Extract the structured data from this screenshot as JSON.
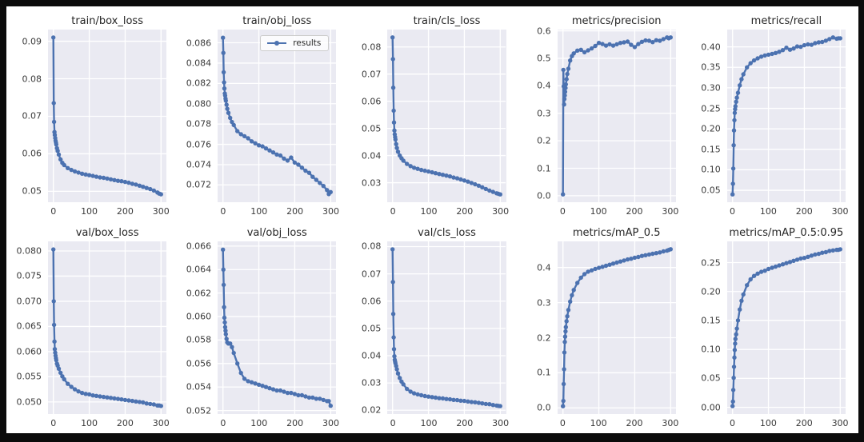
{
  "figure": {
    "frame_color": "#0b0b0b",
    "background": "#ffffff",
    "axes_background": "#eaeaf2",
    "grid_color": "#ffffff",
    "line_color": "#4c72b0",
    "legend_label": "results",
    "layout": {
      "rows": 2,
      "cols": 5,
      "grid": true,
      "legend_position": "upper right of second subplot"
    }
  },
  "chart_data": [
    {
      "type": "line",
      "title": "train/box_loss",
      "xlabel": "",
      "ylabel": "",
      "xlim": [
        -15,
        315
      ],
      "ylim": [
        0.0471,
        0.0931
      ],
      "xticks": [
        0,
        100,
        200,
        300
      ],
      "xtick_labels": [
        "0",
        "100",
        "200",
        "300"
      ],
      "yticks": [
        0.05,
        0.06,
        0.07,
        0.08,
        0.09
      ],
      "ytick_labels": [
        "0.05",
        "0.06",
        "0.07",
        "0.08",
        "0.09"
      ],
      "x": [
        0,
        1,
        2,
        3,
        4,
        5,
        6,
        7,
        8,
        10,
        12,
        15,
        20,
        25,
        30,
        40,
        50,
        60,
        70,
        80,
        90,
        100,
        110,
        120,
        130,
        140,
        150,
        160,
        170,
        180,
        190,
        200,
        210,
        220,
        230,
        240,
        250,
        260,
        270,
        280,
        290,
        295,
        300
      ],
      "y": [
        0.091,
        0.0735,
        0.0685,
        0.0658,
        0.065,
        0.0642,
        0.0635,
        0.063,
        0.0625,
        0.0615,
        0.0608,
        0.0598,
        0.0585,
        0.0576,
        0.057,
        0.0562,
        0.0557,
        0.0553,
        0.055,
        0.0547,
        0.0545,
        0.0543,
        0.0541,
        0.0539,
        0.0537,
        0.0536,
        0.0534,
        0.0532,
        0.053,
        0.0528,
        0.0527,
        0.0525,
        0.0523,
        0.052,
        0.0518,
        0.0515,
        0.0512,
        0.0509,
        0.0506,
        0.0502,
        0.0497,
        0.0494,
        0.0492
      ]
    },
    {
      "type": "line",
      "title": "train/obj_loss",
      "xlabel": "",
      "ylabel": "",
      "legend": "results",
      "xlim": [
        -15,
        315
      ],
      "ylim": [
        0.0703,
        0.0873
      ],
      "xticks": [
        0,
        100,
        200,
        300
      ],
      "xtick_labels": [
        "0",
        "100",
        "200",
        "300"
      ],
      "yticks": [
        0.072,
        0.074,
        0.076,
        0.078,
        0.08,
        0.082,
        0.084,
        0.086
      ],
      "ytick_labels": [
        "0.072",
        "0.074",
        "0.076",
        "0.078",
        "0.080",
        "0.082",
        "0.084",
        "0.086"
      ],
      "x": [
        0,
        1,
        2,
        3,
        4,
        5,
        6,
        7,
        8,
        10,
        12,
        15,
        20,
        25,
        30,
        40,
        50,
        60,
        70,
        80,
        90,
        100,
        110,
        120,
        130,
        140,
        150,
        160,
        170,
        180,
        190,
        200,
        210,
        220,
        230,
        240,
        250,
        260,
        270,
        280,
        290,
        295,
        300
      ],
      "y": [
        0.0865,
        0.085,
        0.0831,
        0.0821,
        0.0815,
        0.081,
        0.0808,
        0.0805,
        0.0803,
        0.0799,
        0.0795,
        0.0791,
        0.0786,
        0.0782,
        0.0779,
        0.0773,
        0.077,
        0.0768,
        0.0766,
        0.0763,
        0.0761,
        0.0759,
        0.0758,
        0.0756,
        0.0754,
        0.0752,
        0.075,
        0.0749,
        0.0746,
        0.0744,
        0.0747,
        0.0742,
        0.074,
        0.0737,
        0.0734,
        0.0732,
        0.0728,
        0.0725,
        0.0722,
        0.0719,
        0.0715,
        0.0711,
        0.0713
      ]
    },
    {
      "type": "line",
      "title": "train/cls_loss",
      "xlabel": "",
      "ylabel": "",
      "xlim": [
        -15,
        315
      ],
      "ylim": [
        0.0228,
        0.0864
      ],
      "xticks": [
        0,
        100,
        200,
        300
      ],
      "xtick_labels": [
        "0",
        "100",
        "200",
        "300"
      ],
      "yticks": [
        0.03,
        0.04,
        0.05,
        0.06,
        0.07,
        0.08
      ],
      "ytick_labels": [
        "0.03",
        "0.04",
        "0.05",
        "0.06",
        "0.07",
        "0.08"
      ],
      "x": [
        0,
        1,
        2,
        3,
        4,
        5,
        6,
        7,
        8,
        10,
        12,
        15,
        20,
        25,
        30,
        40,
        50,
        60,
        70,
        80,
        90,
        100,
        110,
        120,
        130,
        140,
        150,
        160,
        170,
        180,
        190,
        200,
        210,
        220,
        230,
        240,
        250,
        260,
        270,
        280,
        290,
        295,
        300
      ],
      "y": [
        0.0835,
        0.0755,
        0.065,
        0.0565,
        0.0522,
        0.0492,
        0.0478,
        0.0468,
        0.0459,
        0.0442,
        0.0428,
        0.0414,
        0.04,
        0.039,
        0.0381,
        0.0369,
        0.0361,
        0.0355,
        0.0351,
        0.0347,
        0.0344,
        0.0341,
        0.0338,
        0.0335,
        0.0332,
        0.0329,
        0.0326,
        0.0323,
        0.0319,
        0.0316,
        0.0312,
        0.0308,
        0.0304,
        0.0299,
        0.0294,
        0.0289,
        0.0283,
        0.0277,
        0.0271,
        0.0266,
        0.0261,
        0.0259,
        0.0257
      ]
    },
    {
      "type": "line",
      "title": "metrics/precision",
      "xlabel": "",
      "ylabel": "",
      "xlim": [
        -15,
        315
      ],
      "ylim": [
        -0.0236,
        0.6046
      ],
      "xticks": [
        0,
        100,
        200,
        300
      ],
      "xtick_labels": [
        "0",
        "100",
        "200",
        "300"
      ],
      "yticks": [
        0.0,
        0.1,
        0.2,
        0.3,
        0.4,
        0.5,
        0.6
      ],
      "ytick_labels": [
        "0.0",
        "0.1",
        "0.2",
        "0.3",
        "0.4",
        "0.5",
        "0.6"
      ],
      "x": [
        0,
        1,
        2,
        3,
        4,
        5,
        6,
        7,
        8,
        10,
        12,
        15,
        20,
        25,
        30,
        40,
        50,
        60,
        70,
        80,
        90,
        100,
        110,
        120,
        130,
        140,
        150,
        160,
        170,
        180,
        190,
        200,
        210,
        220,
        230,
        240,
        250,
        260,
        270,
        280,
        290,
        295,
        300
      ],
      "y": [
        0.005,
        0.458,
        0.398,
        0.332,
        0.352,
        0.365,
        0.378,
        0.392,
        0.405,
        0.424,
        0.443,
        0.462,
        0.492,
        0.508,
        0.518,
        0.528,
        0.531,
        0.522,
        0.529,
        0.536,
        0.545,
        0.556,
        0.552,
        0.546,
        0.551,
        0.546,
        0.551,
        0.556,
        0.558,
        0.561,
        0.549,
        0.541,
        0.552,
        0.56,
        0.565,
        0.564,
        0.559,
        0.566,
        0.564,
        0.57,
        0.576,
        0.573,
        0.576
      ]
    },
    {
      "type": "line",
      "title": "metrics/recall",
      "xlabel": "",
      "ylabel": "",
      "xlim": [
        -15,
        315
      ],
      "ylim": [
        0.0209,
        0.4422
      ],
      "xticks": [
        0,
        100,
        200,
        300
      ],
      "xtick_labels": [
        "0",
        "100",
        "200",
        "300"
      ],
      "yticks": [
        0.05,
        0.1,
        0.15,
        0.2,
        0.25,
        0.3,
        0.35,
        0.4
      ],
      "ytick_labels": [
        "0.05",
        "0.10",
        "0.15",
        "0.20",
        "0.25",
        "0.30",
        "0.35",
        "0.40"
      ],
      "x": [
        0,
        1,
        2,
        3,
        4,
        5,
        6,
        7,
        8,
        10,
        12,
        15,
        20,
        25,
        30,
        40,
        50,
        60,
        70,
        80,
        90,
        100,
        110,
        120,
        130,
        140,
        150,
        160,
        170,
        180,
        190,
        200,
        210,
        220,
        230,
        240,
        250,
        260,
        270,
        280,
        290,
        295,
        300
      ],
      "y": [
        0.04,
        0.066,
        0.103,
        0.16,
        0.196,
        0.221,
        0.239,
        0.248,
        0.255,
        0.266,
        0.276,
        0.288,
        0.306,
        0.321,
        0.333,
        0.35,
        0.36,
        0.367,
        0.372,
        0.376,
        0.379,
        0.381,
        0.383,
        0.385,
        0.388,
        0.392,
        0.398,
        0.393,
        0.396,
        0.401,
        0.4,
        0.404,
        0.406,
        0.405,
        0.409,
        0.411,
        0.412,
        0.415,
        0.419,
        0.423,
        0.42,
        0.421,
        0.421
      ]
    },
    {
      "type": "line",
      "title": "val/box_loss",
      "xlabel": "",
      "ylabel": "",
      "xlim": [
        -15,
        315
      ],
      "ylim": [
        0.0476,
        0.0819
      ],
      "xticks": [
        0,
        100,
        200,
        300
      ],
      "xtick_labels": [
        "0",
        "100",
        "200",
        "300"
      ],
      "yticks": [
        0.05,
        0.055,
        0.06,
        0.065,
        0.07,
        0.075,
        0.08
      ],
      "ytick_labels": [
        "0.050",
        "0.055",
        "0.060",
        "0.065",
        "0.070",
        "0.075",
        "0.080"
      ],
      "x": [
        0,
        1,
        2,
        3,
        4,
        5,
        6,
        7,
        8,
        10,
        12,
        15,
        20,
        25,
        30,
        40,
        50,
        60,
        70,
        80,
        90,
        100,
        110,
        120,
        130,
        140,
        150,
        160,
        170,
        180,
        190,
        200,
        210,
        220,
        230,
        240,
        250,
        260,
        270,
        280,
        290,
        295,
        300
      ],
      "y": [
        0.0803,
        0.07,
        0.0653,
        0.062,
        0.0605,
        0.0598,
        0.0592,
        0.0587,
        0.0583,
        0.0576,
        0.0572,
        0.0566,
        0.0558,
        0.0551,
        0.0545,
        0.0536,
        0.053,
        0.0525,
        0.0521,
        0.0518,
        0.0516,
        0.0515,
        0.0513,
        0.0512,
        0.0511,
        0.051,
        0.0509,
        0.0508,
        0.0507,
        0.0506,
        0.0505,
        0.0504,
        0.0503,
        0.0502,
        0.0501,
        0.05,
        0.0499,
        0.0497,
        0.0496,
        0.0495,
        0.0493,
        0.0493,
        0.0492
      ]
    },
    {
      "type": "line",
      "title": "val/obj_loss",
      "xlabel": "",
      "ylabel": "",
      "xlim": [
        -15,
        315
      ],
      "ylim": [
        0.0517,
        0.0664
      ],
      "xticks": [
        0,
        100,
        200,
        300
      ],
      "xtick_labels": [
        "0",
        "100",
        "200",
        "300"
      ],
      "yticks": [
        0.052,
        0.054,
        0.056,
        0.058,
        0.06,
        0.062,
        0.064,
        0.066
      ],
      "ytick_labels": [
        "0.052",
        "0.054",
        "0.056",
        "0.058",
        "0.060",
        "0.062",
        "0.064",
        "0.066"
      ],
      "x": [
        0,
        1,
        2,
        3,
        4,
        5,
        6,
        7,
        8,
        10,
        12,
        15,
        20,
        25,
        30,
        40,
        50,
        60,
        70,
        80,
        90,
        100,
        110,
        120,
        130,
        140,
        150,
        160,
        170,
        180,
        190,
        200,
        210,
        220,
        230,
        240,
        250,
        260,
        270,
        280,
        290,
        295,
        300
      ],
      "y": [
        0.0657,
        0.064,
        0.0627,
        0.0608,
        0.0599,
        0.0595,
        0.0591,
        0.0588,
        0.0585,
        0.0581,
        0.0578,
        0.0577,
        0.0577,
        0.0574,
        0.0569,
        0.056,
        0.0552,
        0.0547,
        0.0545,
        0.0544,
        0.0543,
        0.0542,
        0.0541,
        0.054,
        0.0539,
        0.0538,
        0.0537,
        0.0537,
        0.0536,
        0.0535,
        0.0535,
        0.0534,
        0.0533,
        0.0533,
        0.0532,
        0.0531,
        0.0531,
        0.053,
        0.053,
        0.0529,
        0.0528,
        0.0528,
        0.0524
      ]
    },
    {
      "type": "line",
      "title": "val/cls_loss",
      "xlabel": "",
      "ylabel": "",
      "xlim": [
        -15,
        315
      ],
      "ylim": [
        0.0186,
        0.0819
      ],
      "xticks": [
        0,
        100,
        200,
        300
      ],
      "xtick_labels": [
        "0",
        "100",
        "200",
        "300"
      ],
      "yticks": [
        0.02,
        0.03,
        0.04,
        0.05,
        0.06,
        0.07,
        0.08
      ],
      "ytick_labels": [
        "0.02",
        "0.03",
        "0.04",
        "0.05",
        "0.06",
        "0.07",
        "0.08"
      ],
      "x": [
        0,
        1,
        2,
        3,
        4,
        5,
        6,
        7,
        8,
        10,
        12,
        15,
        20,
        25,
        30,
        40,
        50,
        60,
        70,
        80,
        90,
        100,
        110,
        120,
        130,
        140,
        150,
        160,
        170,
        180,
        190,
        200,
        210,
        220,
        230,
        240,
        250,
        260,
        270,
        280,
        290,
        295,
        300
      ],
      "y": [
        0.079,
        0.067,
        0.0553,
        0.0467,
        0.0424,
        0.0398,
        0.0385,
        0.0378,
        0.0372,
        0.0362,
        0.035,
        0.0335,
        0.0318,
        0.0305,
        0.0295,
        0.0278,
        0.0268,
        0.0262,
        0.0258,
        0.0255,
        0.0252,
        0.025,
        0.0248,
        0.0246,
        0.0244,
        0.0243,
        0.0241,
        0.024,
        0.0238,
        0.0237,
        0.0235,
        0.0234,
        0.0232,
        0.023,
        0.0229,
        0.0227,
        0.0225,
        0.0223,
        0.0222,
        0.0219,
        0.0217,
        0.0216,
        0.0215
      ]
    },
    {
      "type": "line",
      "title": "metrics/mAP_0.5",
      "xlabel": "",
      "ylabel": "",
      "xlim": [
        -15,
        315
      ],
      "ylim": [
        -0.0174,
        0.4744
      ],
      "xticks": [
        0,
        100,
        200,
        300
      ],
      "xtick_labels": [
        "0",
        "100",
        "200",
        "300"
      ],
      "yticks": [
        0.0,
        0.1,
        0.2,
        0.3,
        0.4
      ],
      "ytick_labels": [
        "0.0",
        "0.1",
        "0.2",
        "0.3",
        "0.4"
      ],
      "x": [
        0,
        1,
        2,
        3,
        4,
        5,
        6,
        7,
        8,
        10,
        12,
        15,
        20,
        25,
        30,
        40,
        50,
        60,
        70,
        80,
        90,
        100,
        110,
        120,
        130,
        140,
        150,
        160,
        170,
        180,
        190,
        200,
        210,
        220,
        230,
        240,
        250,
        260,
        270,
        280,
        290,
        295,
        300
      ],
      "y": [
        0.005,
        0.02,
        0.068,
        0.11,
        0.158,
        0.188,
        0.203,
        0.218,
        0.23,
        0.247,
        0.261,
        0.279,
        0.303,
        0.321,
        0.336,
        0.356,
        0.371,
        0.381,
        0.388,
        0.392,
        0.396,
        0.399,
        0.402,
        0.405,
        0.408,
        0.411,
        0.414,
        0.417,
        0.42,
        0.423,
        0.425,
        0.428,
        0.43,
        0.433,
        0.435,
        0.437,
        0.439,
        0.441,
        0.443,
        0.446,
        0.448,
        0.45,
        0.452
      ]
    },
    {
      "type": "line",
      "title": "metrics/mAP_0.5:0.95",
      "xlabel": "",
      "ylabel": "",
      "xlim": [
        -15,
        315
      ],
      "ylim": [
        -0.0116,
        0.2866
      ],
      "xticks": [
        0,
        100,
        200,
        300
      ],
      "xtick_labels": [
        "0",
        "100",
        "200",
        "300"
      ],
      "yticks": [
        0.0,
        0.05,
        0.1,
        0.15,
        0.2,
        0.25
      ],
      "ytick_labels": [
        "0.00",
        "0.05",
        "0.10",
        "0.15",
        "0.20",
        "0.25"
      ],
      "x": [
        0,
        1,
        2,
        3,
        4,
        5,
        6,
        7,
        8,
        10,
        12,
        15,
        20,
        25,
        30,
        40,
        50,
        60,
        70,
        80,
        90,
        100,
        110,
        120,
        130,
        140,
        150,
        160,
        170,
        180,
        190,
        200,
        210,
        220,
        230,
        240,
        250,
        260,
        270,
        280,
        290,
        295,
        300
      ],
      "y": [
        0.002,
        0.01,
        0.03,
        0.051,
        0.07,
        0.086,
        0.099,
        0.11,
        0.118,
        0.126,
        0.136,
        0.15,
        0.169,
        0.184,
        0.195,
        0.211,
        0.221,
        0.227,
        0.231,
        0.234,
        0.236,
        0.239,
        0.241,
        0.243,
        0.245,
        0.247,
        0.249,
        0.251,
        0.253,
        0.255,
        0.257,
        0.258,
        0.26,
        0.262,
        0.264,
        0.265,
        0.267,
        0.268,
        0.27,
        0.271,
        0.272,
        0.272,
        0.273
      ]
    }
  ]
}
